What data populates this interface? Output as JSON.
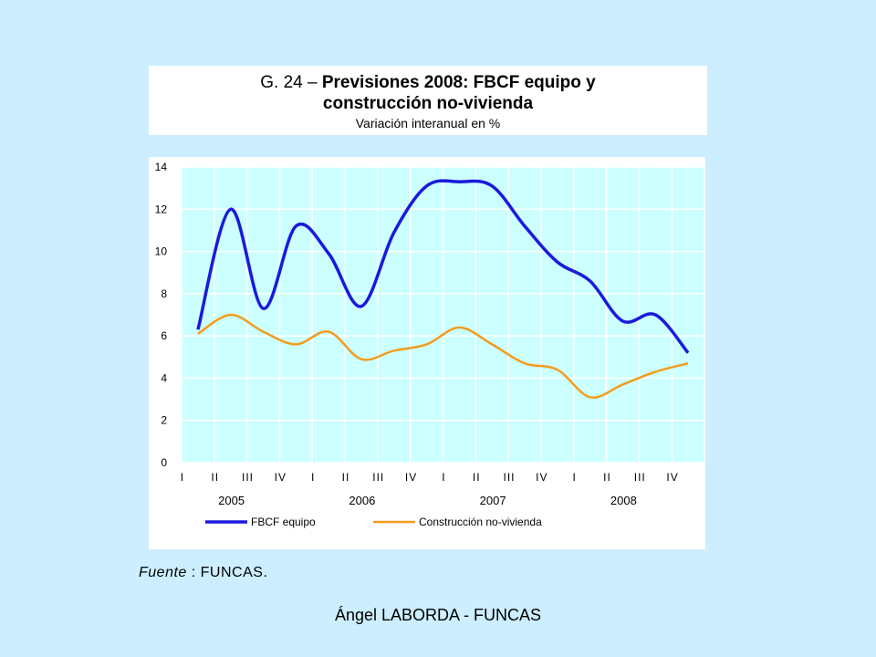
{
  "title": {
    "prefix": "G. 24 – ",
    "bold": "Previsiones 2008: FBCF equipo y",
    "line2": "construcción no-vivienda",
    "subtitle": "Variación interanual en %"
  },
  "source": {
    "label": "Fuente",
    "sep": " : ",
    "value": "FUNCAS."
  },
  "footer": "Ángel LABORDA - FUNCAS",
  "colors": {
    "series1": "#1a1adc",
    "series2": "#f39c1f",
    "plot_bg": "#ccffff",
    "page_bg": "#cceeff"
  },
  "chart_data": {
    "type": "line",
    "ylim": [
      0,
      14
    ],
    "yticks": [
      "0",
      "2",
      "4",
      "6",
      "8",
      "10",
      "12",
      "14"
    ],
    "x": [
      "I",
      "II",
      "III",
      "IV",
      "I",
      "II",
      "III",
      "IV",
      "I",
      "II",
      "III",
      "IV",
      "I",
      "II",
      "III",
      "IV"
    ],
    "years": [
      "2005",
      "2006",
      "2007",
      "2008"
    ],
    "grid": true,
    "legend_position": "bottom",
    "series": [
      {
        "name": "FBCF equipo",
        "color": "#1a1adc",
        "values": [
          6.3,
          12.0,
          7.3,
          11.2,
          9.9,
          7.4,
          10.9,
          13.1,
          13.3,
          13.1,
          11.2,
          9.5,
          8.6,
          6.7,
          7.0,
          5.2
        ]
      },
      {
        "name": "Construcción no-vivienda",
        "color": "#f39c1f",
        "values": [
          6.1,
          7.0,
          6.2,
          5.6,
          6.2,
          4.9,
          5.3,
          5.6,
          6.4,
          5.6,
          4.7,
          4.4,
          3.1,
          3.7,
          4.3,
          4.7
        ]
      }
    ]
  }
}
